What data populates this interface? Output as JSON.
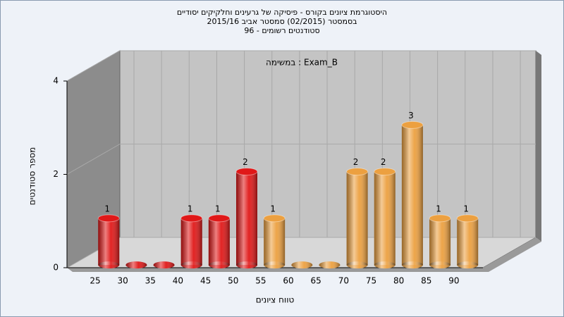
{
  "chart_data": {
    "type": "bar",
    "title": [
      "היסטוגרמת ציונים בקורס - פיסיקה של גרעינים וחלקיקים יסודיים",
      "בסמסטר  (02/2015)  סמסטר אביב 2015/16",
      "סטודנטים רשומים - 96"
    ],
    "annotation": "במשימה : Exam_B",
    "x_label": "טווח ציונים",
    "y_label": "מספר סטודנטים",
    "categories": [
      "25",
      "30",
      "35",
      "40",
      "45",
      "50",
      "55",
      "60",
      "65",
      "70",
      "75",
      "80",
      "85",
      "90"
    ],
    "values": [
      1,
      0,
      0,
      1,
      1,
      2,
      1,
      0,
      0,
      2,
      2,
      3,
      1,
      1
    ],
    "colors": [
      "#e01818",
      "#e01818",
      "#e01818",
      "#e01818",
      "#e01818",
      "#e01818",
      "#eca040",
      "#eca040",
      "#eca040",
      "#eca040",
      "#eca040",
      "#eca040",
      "#eca040",
      "#eca040"
    ],
    "ylim": [
      0,
      4
    ],
    "yticks": [
      0,
      2,
      4
    ],
    "grid": true
  }
}
